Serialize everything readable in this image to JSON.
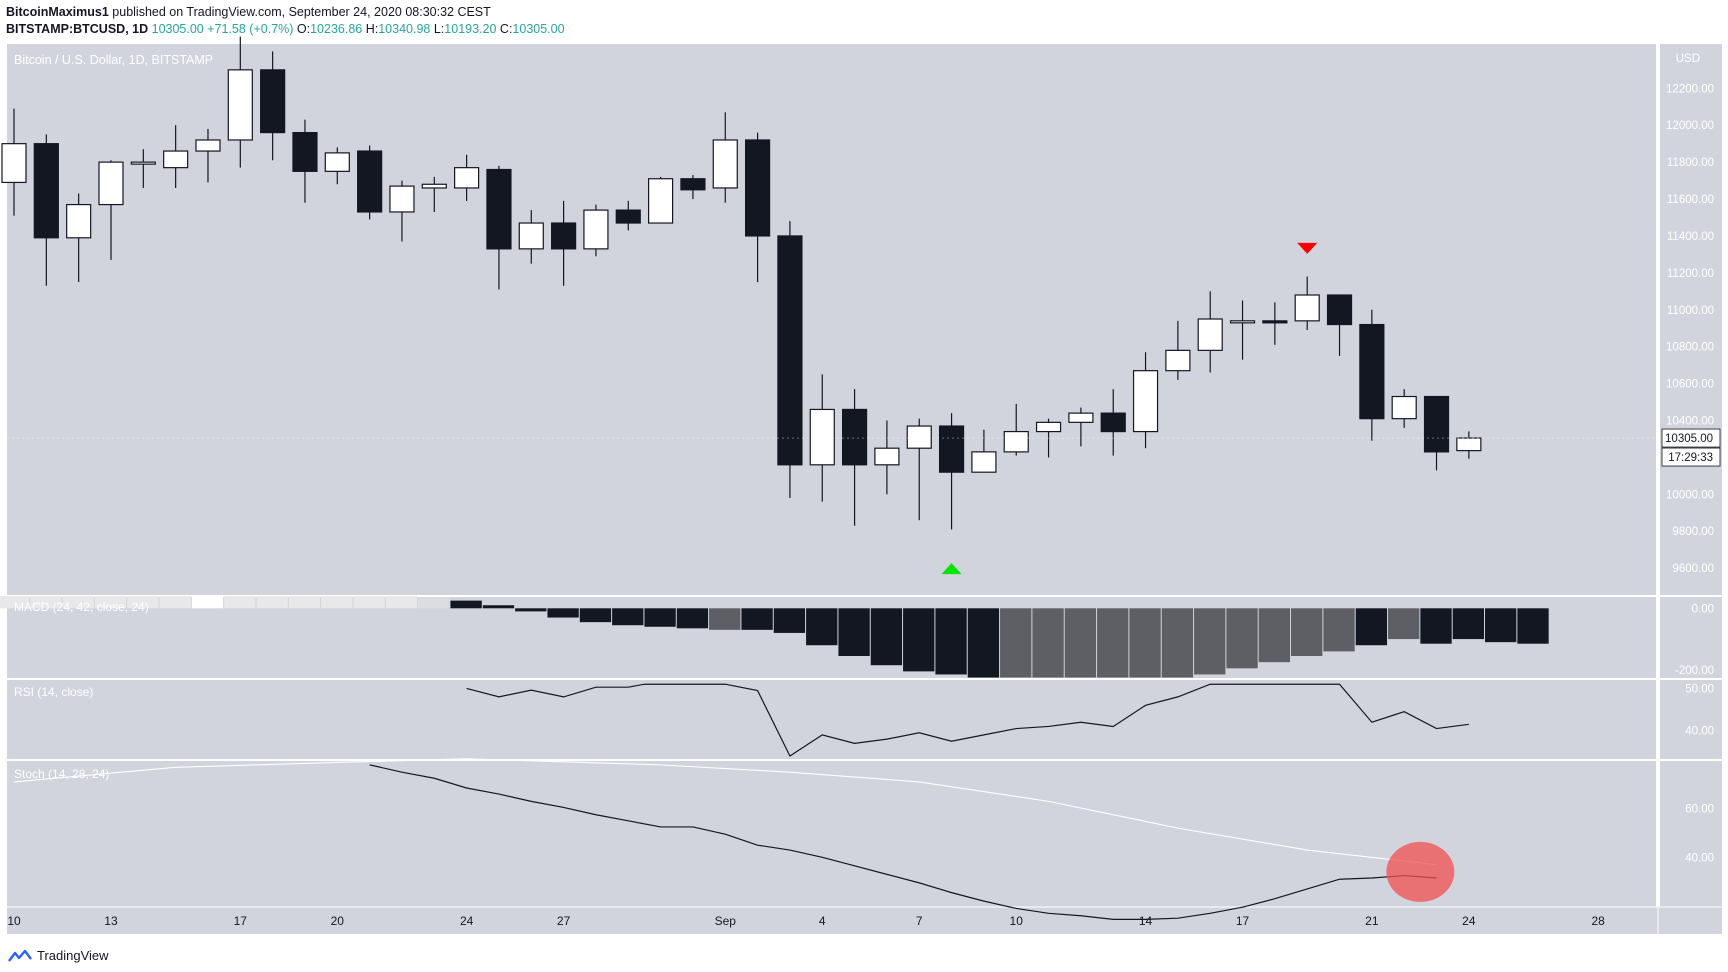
{
  "header": {
    "author": "BitcoinMaximus1",
    "published_text": "published on TradingView.com, September 24, 2020 08:30:32 CEST",
    "symbol": "BITSTAMP:BTCUSD, 1D",
    "last": "10305.00",
    "change": "+71.58 (+0.7%)",
    "o_label": "O:",
    "o_value": "10236.86",
    "h_label": "H:",
    "h_value": "10340.98",
    "l_label": "L:",
    "l_value": "10193.20",
    "c_label": "C:",
    "c_value": "10305.00"
  },
  "footer": {
    "brand": "TradingView",
    "logo_icon": "tradingview-logo-icon"
  },
  "chart_data": {
    "type": "candlestick",
    "title": "Bitcoin / U.S. Dollar, 1D, BITSTAMP",
    "currency_label": "USD",
    "colors": {
      "up_body": "#ffffff",
      "down_body": "#131722",
      "background": "#d1d4dc",
      "marker_up": "#00e600",
      "marker_down": "#ff0000",
      "highlight": "#f05050"
    },
    "price_axis": {
      "range": [
        9460,
        12440
      ],
      "ticks": [
        9600,
        9800,
        10000,
        10200,
        10400,
        10600,
        10800,
        11000,
        11200,
        11400,
        11600,
        11800,
        12000,
        12200
      ],
      "tick_labels": [
        "9600.00",
        "9800.00",
        "10000.00",
        "10200.00",
        "10400.00",
        "10600.00",
        "10800.00",
        "11000.00",
        "11200.00",
        "11400.00",
        "11600.00",
        "11800.00",
        "12000.00",
        "12200.00"
      ],
      "last_price_label": "10305.00",
      "countdown_label": "17:29:33"
    },
    "x_axis": {
      "labels": [
        {
          "day": 0,
          "text": "10"
        },
        {
          "day": 3,
          "text": "13"
        },
        {
          "day": 7,
          "text": "17"
        },
        {
          "day": 10,
          "text": "20"
        },
        {
          "day": 14,
          "text": "24"
        },
        {
          "day": 17,
          "text": "27"
        },
        {
          "day": 22,
          "text": "Sep"
        },
        {
          "day": 25,
          "text": "4"
        },
        {
          "day": 28,
          "text": "7"
        },
        {
          "day": 31,
          "text": "10"
        },
        {
          "day": 35,
          "text": "14"
        },
        {
          "day": 38,
          "text": "17"
        },
        {
          "day": 42,
          "text": "21"
        },
        {
          "day": 45,
          "text": "24"
        },
        {
          "day": 49,
          "text": "28"
        }
      ],
      "note": "day 0 = Aug 10, 2020"
    },
    "candles": [
      {
        "o": 11690,
        "h": 12090,
        "l": 11510,
        "c": 11900
      },
      {
        "o": 11900,
        "h": 11950,
        "l": 11130,
        "c": 11390
      },
      {
        "o": 11390,
        "h": 11630,
        "l": 11150,
        "c": 11570
      },
      {
        "o": 11570,
        "h": 11810,
        "l": 11270,
        "c": 11800
      },
      {
        "o": 11790,
        "h": 11870,
        "l": 11660,
        "c": 11800
      },
      {
        "o": 11770,
        "h": 12000,
        "l": 11660,
        "c": 11860
      },
      {
        "o": 11860,
        "h": 11980,
        "l": 11690,
        "c": 11920
      },
      {
        "o": 11920,
        "h": 12480,
        "l": 11770,
        "c": 12300
      },
      {
        "o": 12300,
        "h": 12400,
        "l": 11810,
        "c": 11960
      },
      {
        "o": 11960,
        "h": 12030,
        "l": 11580,
        "c": 11750
      },
      {
        "o": 11750,
        "h": 11880,
        "l": 11680,
        "c": 11850
      },
      {
        "o": 11860,
        "h": 11890,
        "l": 11490,
        "c": 11530
      },
      {
        "o": 11530,
        "h": 11700,
        "l": 11370,
        "c": 11670
      },
      {
        "o": 11660,
        "h": 11720,
        "l": 11530,
        "c": 11680
      },
      {
        "o": 11660,
        "h": 11840,
        "l": 11590,
        "c": 11770
      },
      {
        "o": 11760,
        "h": 11780,
        "l": 11110,
        "c": 11330
      },
      {
        "o": 11330,
        "h": 11540,
        "l": 11250,
        "c": 11470
      },
      {
        "o": 11470,
        "h": 11590,
        "l": 11130,
        "c": 11330
      },
      {
        "o": 11330,
        "h": 11570,
        "l": 11290,
        "c": 11540
      },
      {
        "o": 11540,
        "h": 11590,
        "l": 11430,
        "c": 11470
      },
      {
        "o": 11470,
        "h": 11720,
        "l": 11470,
        "c": 11710
      },
      {
        "o": 11710,
        "h": 11730,
        "l": 11600,
        "c": 11650
      },
      {
        "o": 11660,
        "h": 12070,
        "l": 11580,
        "c": 11920
      },
      {
        "o": 11920,
        "h": 11960,
        "l": 11150,
        "c": 11400
      },
      {
        "o": 11400,
        "h": 11480,
        "l": 9980,
        "c": 10160
      },
      {
        "o": 10160,
        "h": 10650,
        "l": 9960,
        "c": 10460
      },
      {
        "o": 10460,
        "h": 10570,
        "l": 9830,
        "c": 10160
      },
      {
        "o": 10160,
        "h": 10400,
        "l": 10000,
        "c": 10250
      },
      {
        "o": 10250,
        "h": 10410,
        "l": 9860,
        "c": 10370
      },
      {
        "o": 10370,
        "h": 10440,
        "l": 9810,
        "c": 10120
      },
      {
        "o": 10120,
        "h": 10350,
        "l": 10130,
        "c": 10230
      },
      {
        "o": 10230,
        "h": 10490,
        "l": 10210,
        "c": 10340
      },
      {
        "o": 10340,
        "h": 10410,
        "l": 10200,
        "c": 10390
      },
      {
        "o": 10390,
        "h": 10470,
        "l": 10260,
        "c": 10440
      },
      {
        "o": 10440,
        "h": 10570,
        "l": 10210,
        "c": 10340
      },
      {
        "o": 10340,
        "h": 10770,
        "l": 10250,
        "c": 10670
      },
      {
        "o": 10670,
        "h": 10940,
        "l": 10620,
        "c": 10780
      },
      {
        "o": 10780,
        "h": 11100,
        "l": 10660,
        "c": 10950
      },
      {
        "o": 10940,
        "h": 11050,
        "l": 10730,
        "c": 10940
      },
      {
        "o": 10940,
        "h": 11040,
        "l": 10810,
        "c": 10930
      },
      {
        "o": 10940,
        "h": 11180,
        "l": 10890,
        "c": 11080
      },
      {
        "o": 11080,
        "h": 11080,
        "l": 10750,
        "c": 10920
      },
      {
        "o": 10920,
        "h": 11000,
        "l": 10290,
        "c": 10410
      },
      {
        "o": 10410,
        "h": 10570,
        "l": 10360,
        "c": 10530
      },
      {
        "o": 10530,
        "h": 10530,
        "l": 10130,
        "c": 10230
      },
      {
        "o": 10236.86,
        "h": 10340.98,
        "l": 10193.2,
        "c": 10305.0
      }
    ],
    "markers": [
      {
        "day": 29,
        "type": "up",
        "price": 9600
      },
      {
        "day": 40,
        "type": "down",
        "price": 11330
      }
    ],
    "macd": {
      "label": "MACD (24, 42, close, 24)",
      "ticks": [
        0,
        -200
      ],
      "tick_labels": [
        "0.00",
        "-200.00"
      ],
      "range": [
        -220,
        40
      ],
      "histogram": [
        40,
        40,
        40,
        40,
        40,
        40,
        40,
        40,
        40,
        40,
        40,
        40,
        40,
        35,
        25,
        10,
        -10,
        -30,
        -45,
        -55,
        -60,
        -65,
        -70,
        -70,
        -80,
        -120,
        -155,
        -185,
        -205,
        -215,
        -225,
        -225,
        -225,
        -225,
        -225,
        -225,
        -225,
        -215,
        -195,
        -175,
        -155,
        -140,
        -120,
        -100,
        -115,
        -100,
        -110,
        -115
      ],
      "histogram_colors": [
        "#e8e8ea",
        "#e8e8ea",
        "#e8e8ea",
        "#e8e8ea",
        "#e8e8ea",
        "#e8e8ea",
        "#ffffff",
        "#e8e8ea",
        "#e8e8ea",
        "#e8e8ea",
        "#e8e8ea",
        "#e8e8ea",
        "#e8e8ea",
        "#dcdde0",
        "#131722",
        "#131722",
        "#131722",
        "#131722",
        "#131722",
        "#131722",
        "#131722",
        "#131722",
        "#5d5f64",
        "#131722",
        "#131722",
        "#131722",
        "#131722",
        "#131722",
        "#131722",
        "#131722",
        "#131722",
        "#5d5f64",
        "#5d5f64",
        "#5d5f64",
        "#5d5f64",
        "#5d5f64",
        "#5d5f64",
        "#5d5f64",
        "#5d5f64",
        "#5d5f64",
        "#5d5f64",
        "#5d5f64",
        "#131722",
        "#5d5f64",
        "#131722",
        "#131722",
        "#131722",
        "#131722"
      ]
    },
    "rsi": {
      "label": "RSI (14, close)",
      "ticks": [
        50,
        40
      ],
      "tick_labels": [
        "50.00",
        "40.00"
      ],
      "range": [
        34,
        52
      ],
      "line": [
        [
          14,
          50
        ],
        [
          15,
          48
        ],
        [
          16,
          49.6
        ],
        [
          17,
          48
        ],
        [
          18,
          50.3
        ],
        [
          19,
          50.3
        ],
        [
          19.5,
          51
        ],
        [
          20,
          51
        ],
        [
          22,
          51
        ],
        [
          23,
          49.5
        ],
        [
          24,
          34
        ],
        [
          25,
          39
        ],
        [
          26,
          37
        ],
        [
          27,
          38
        ],
        [
          28,
          39.5
        ],
        [
          29,
          37.5
        ],
        [
          30,
          39
        ],
        [
          31,
          40.5
        ],
        [
          32,
          41
        ],
        [
          33,
          42
        ],
        [
          34,
          41
        ],
        [
          35,
          46
        ],
        [
          36,
          48
        ],
        [
          37,
          51
        ],
        [
          38,
          51
        ],
        [
          41,
          51
        ],
        [
          42,
          42
        ],
        [
          43,
          44.5
        ],
        [
          44,
          40.5
        ],
        [
          45,
          41.5
        ]
      ]
    },
    "stoch": {
      "label": "Stoch (14, 28, 24)",
      "ticks": [
        60,
        40
      ],
      "tick_labels": [
        "60.00",
        "40.00"
      ],
      "range": [
        20,
        80
      ],
      "k_line": [
        [
          11,
          78
        ],
        [
          12,
          75
        ],
        [
          13,
          72.5
        ],
        [
          14,
          68.5
        ],
        [
          15,
          66
        ],
        [
          16,
          63
        ],
        [
          17,
          60.5
        ],
        [
          18,
          57.5
        ],
        [
          19,
          55
        ],
        [
          20,
          52.5
        ],
        [
          21,
          52.5
        ],
        [
          22,
          49.5
        ],
        [
          23,
          45
        ],
        [
          24,
          43
        ],
        [
          25,
          40
        ],
        [
          26,
          36.5
        ],
        [
          27,
          33
        ],
        [
          28,
          29.5
        ],
        [
          29,
          25.5
        ],
        [
          30,
          22
        ],
        [
          31,
          19
        ],
        [
          32,
          17
        ],
        [
          33,
          16
        ],
        [
          34,
          14.5
        ],
        [
          35,
          14.5
        ],
        [
          36,
          15
        ],
        [
          37,
          17
        ],
        [
          38,
          19.5
        ],
        [
          39,
          23
        ],
        [
          40,
          27
        ],
        [
          41,
          31
        ],
        [
          42,
          31.5
        ],
        [
          43,
          32.5
        ],
        [
          44,
          31.5
        ]
      ],
      "d_line": [
        [
          0,
          71
        ],
        [
          5,
          77
        ],
        [
          10,
          79
        ],
        [
          14,
          80.5
        ],
        [
          20,
          78
        ],
        [
          24,
          75
        ],
        [
          28,
          71
        ],
        [
          32,
          63
        ],
        [
          36,
          52
        ],
        [
          40,
          43
        ],
        [
          44,
          37
        ]
      ]
    },
    "highlight_ellipse": {
      "day": 43.5,
      "value": 34
    }
  }
}
